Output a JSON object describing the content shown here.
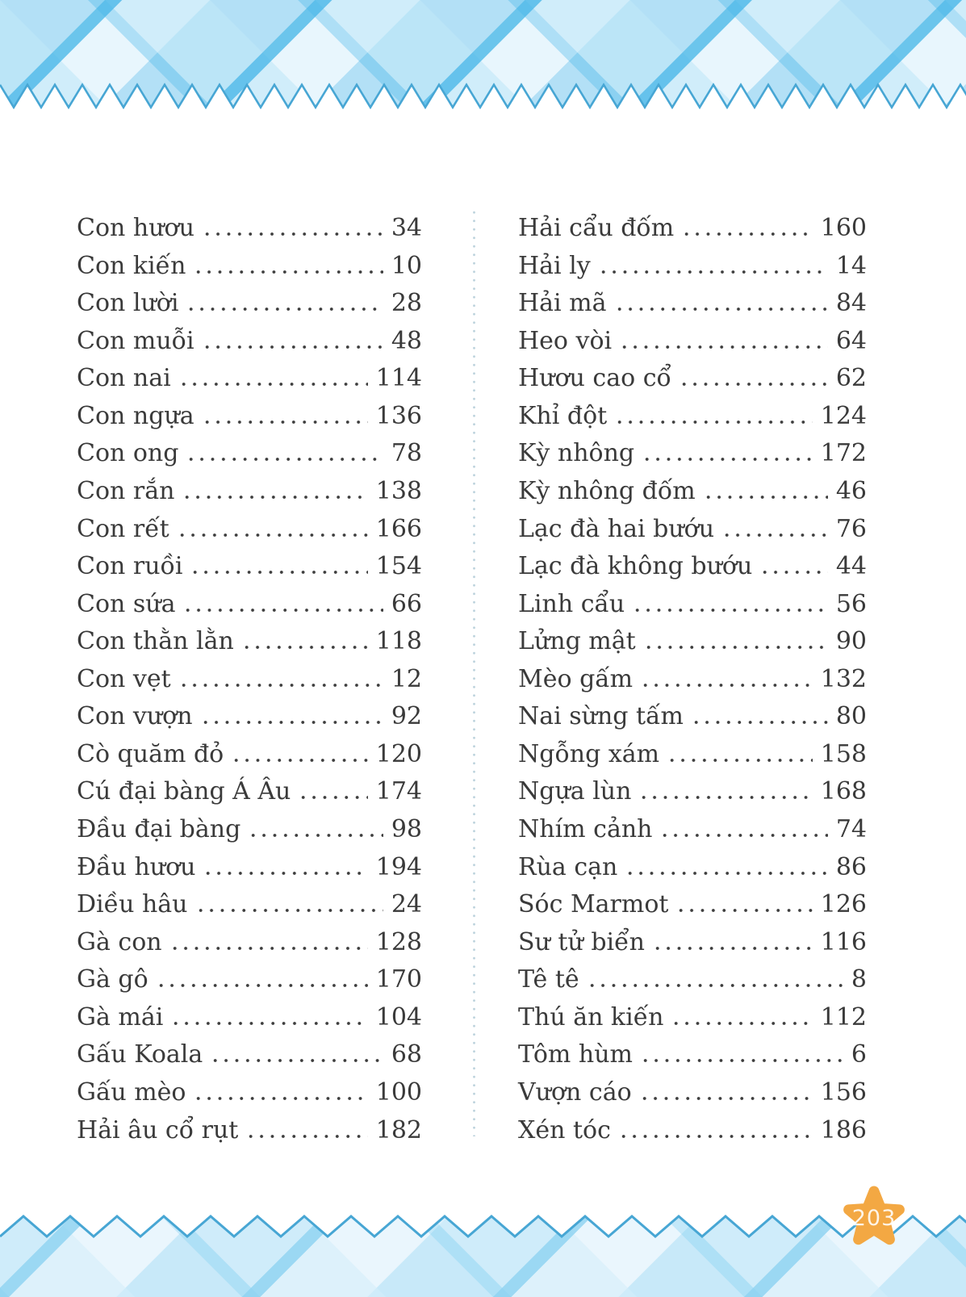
{
  "page_badge": "203",
  "index": {
    "left_column": [
      {
        "label": "Con hươu",
        "page": "34"
      },
      {
        "label": "Con kiến",
        "page": "10"
      },
      {
        "label": "Con lười",
        "page": "28"
      },
      {
        "label": "Con muỗi",
        "page": "48"
      },
      {
        "label": "Con nai",
        "page": "114"
      },
      {
        "label": "Con ngựa",
        "page": "136"
      },
      {
        "label": "Con ong",
        "page": "78"
      },
      {
        "label": "Con rắn",
        "page": "138"
      },
      {
        "label": "Con rết",
        "page": "166"
      },
      {
        "label": "Con ruồi",
        "page": "154"
      },
      {
        "label": "Con sứa",
        "page": "66"
      },
      {
        "label": "Con thằn lằn",
        "page": "118"
      },
      {
        "label": "Con vẹt",
        "page": "12"
      },
      {
        "label": "Con vượn",
        "page": "92"
      },
      {
        "label": "Cò quăm đỏ",
        "page": "120"
      },
      {
        "label": "Cú đại bàng Á Âu",
        "page": "174"
      },
      {
        "label": "Đầu đại bàng",
        "page": "98"
      },
      {
        "label": "Đầu hươu",
        "page": "194"
      },
      {
        "label": "Diều hâu",
        "page": "24"
      },
      {
        "label": "Gà con",
        "page": "128"
      },
      {
        "label": "Gà gô",
        "page": "170"
      },
      {
        "label": "Gà mái",
        "page": "104"
      },
      {
        "label": "Gấu Koala",
        "page": "68"
      },
      {
        "label": "Gấu mèo",
        "page": "100"
      },
      {
        "label": "Hải âu cổ rụt",
        "page": "182"
      }
    ],
    "right_column": [
      {
        "label": "Hải cẩu đốm",
        "page": "160"
      },
      {
        "label": "Hải ly",
        "page": "14"
      },
      {
        "label": "Hải mã",
        "page": "84"
      },
      {
        "label": "Heo vòi",
        "page": "64"
      },
      {
        "label": "Hươu cao cổ",
        "page": "62"
      },
      {
        "label": "Khỉ đột",
        "page": "124"
      },
      {
        "label": "Kỳ nhông",
        "page": "172"
      },
      {
        "label": "Kỳ nhông đốm",
        "page": "46"
      },
      {
        "label": "Lạc đà hai bướu",
        "page": "76"
      },
      {
        "label": "Lạc đà không bướu",
        "page": "44"
      },
      {
        "label": "Linh cẩu",
        "page": "56"
      },
      {
        "label": "Lửng mật",
        "page": "90"
      },
      {
        "label": "Mèo gấm",
        "page": "132"
      },
      {
        "label": "Nai sừng tấm",
        "page": "80"
      },
      {
        "label": "Ngỗng xám",
        "page": "158"
      },
      {
        "label": "Ngựa lùn",
        "page": "168"
      },
      {
        "label": "Nhím cảnh",
        "page": "74"
      },
      {
        "label": "Rùa cạn",
        "page": "86"
      },
      {
        "label": "Sóc Marmot",
        "page": "126"
      },
      {
        "label": "Sư tử biển",
        "page": "116"
      },
      {
        "label": "Tê tê",
        "page": "8"
      },
      {
        "label": "Thú ăn kiến",
        "page": "112"
      },
      {
        "label": "Tôm hùm",
        "page": "6"
      },
      {
        "label": "Vượn cáo",
        "page": "156"
      },
      {
        "label": "Xén tóc",
        "page": "186"
      }
    ]
  },
  "colors": {
    "text": "#3A3A3A",
    "border_zigzag_stroke": "#47A6D4",
    "plaid_light": "#E8F6FD",
    "plaid_medium": "#ADDEF5",
    "plaid_accent": "#41B4E6",
    "star_orange": "#F3A843",
    "star_text": "#FFFFFF"
  }
}
